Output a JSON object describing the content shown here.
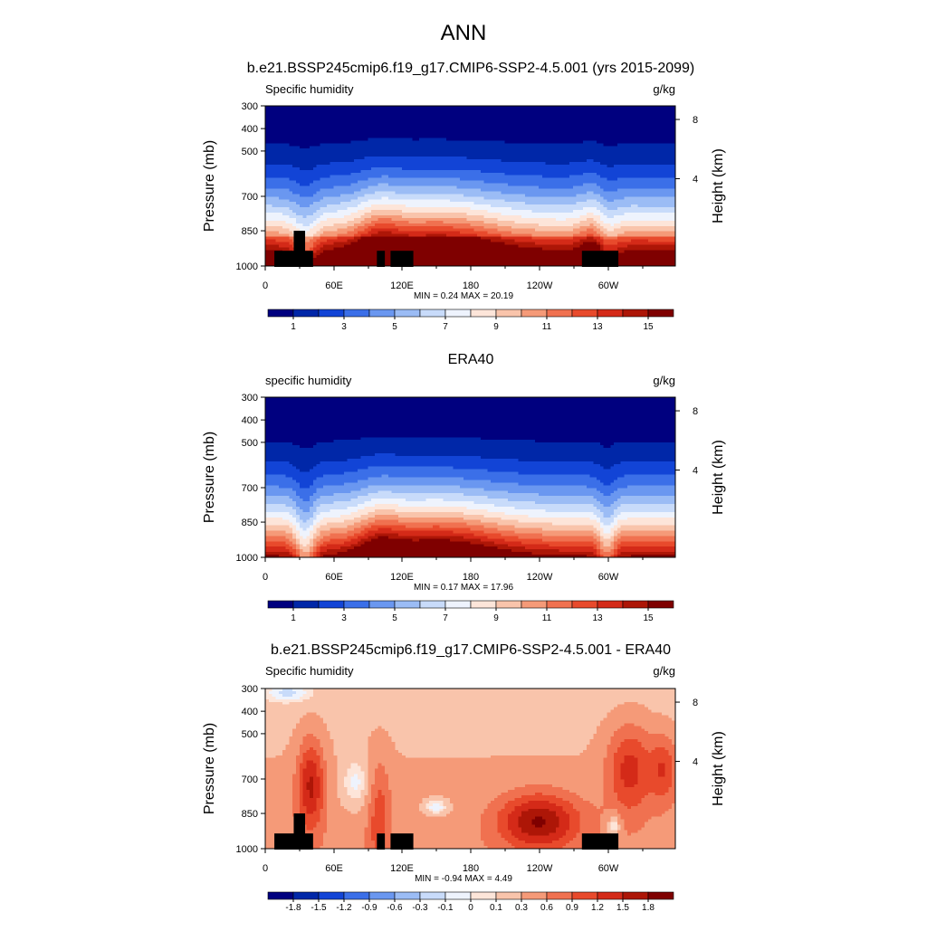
{
  "page": {
    "title": "ANN"
  },
  "chart_data": [
    {
      "type": "heatmap",
      "id": "model",
      "title": "b.e21.BSSP245cmip6.f19_g17.CMIP6-SSP2-4.5.001 (yrs 2015-2099)",
      "variable": "Specific humidity",
      "units": "g/kg",
      "ylabel": "Pressure (mb)",
      "y2label": "Height (km)",
      "xticks": [
        "0",
        "60E",
        "120E",
        "180",
        "120W",
        "60W"
      ],
      "yticks": [
        "300",
        "400",
        "500",
        "700",
        "850",
        "1000"
      ],
      "y2ticks": [
        "8",
        "4"
      ],
      "stats": "MIN =   0.24  MAX =  20.19",
      "min": 0.24,
      "max": 20.19,
      "colorbar_labels": [
        "1",
        "3",
        "5",
        "7",
        "9",
        "11",
        "13",
        "15"
      ],
      "colors": [
        "#00007f",
        "#0027a8",
        "#1244d6",
        "#3b6fe8",
        "#6a97f0",
        "#9bbcf5",
        "#c8dbfa",
        "#eef3fd",
        "#fde5d9",
        "#f9c4ab",
        "#f59a78",
        "#f07150",
        "#e84a2c",
        "#d42a18",
        "#ad1607",
        "#7f0000"
      ]
    },
    {
      "type": "heatmap",
      "id": "obs",
      "title": "ERA40",
      "variable": "specific humidity",
      "units": "g/kg",
      "ylabel": "Pressure (mb)",
      "y2label": "Height (km)",
      "xticks": [
        "0",
        "60E",
        "120E",
        "180",
        "120W",
        "60W"
      ],
      "yticks": [
        "300",
        "400",
        "500",
        "700",
        "850",
        "1000"
      ],
      "y2ticks": [
        "8",
        "4"
      ],
      "stats": "MIN =   0.17  MAX =  17.96",
      "min": 0.17,
      "max": 17.96,
      "colorbar_labels": [
        "1",
        "3",
        "5",
        "7",
        "9",
        "11",
        "13",
        "15"
      ],
      "colors": [
        "#00007f",
        "#0027a8",
        "#1244d6",
        "#3b6fe8",
        "#6a97f0",
        "#9bbcf5",
        "#c8dbfa",
        "#eef3fd",
        "#fde5d9",
        "#f9c4ab",
        "#f59a78",
        "#f07150",
        "#e84a2c",
        "#d42a18",
        "#ad1607",
        "#7f0000"
      ]
    },
    {
      "type": "heatmap",
      "id": "diff",
      "title": "b.e21.BSSP245cmip6.f19_g17.CMIP6-SSP2-4.5.001 - ERA40",
      "variable": "Specific humidity",
      "units": "g/kg",
      "ylabel": "Pressure (mb)",
      "y2label": "Height (km)",
      "xticks": [
        "0",
        "60E",
        "120E",
        "180",
        "120W",
        "60W"
      ],
      "yticks": [
        "300",
        "400",
        "500",
        "700",
        "850",
        "1000"
      ],
      "y2ticks": [
        "8",
        "4"
      ],
      "stats": "MIN =  -0.94  MAX =   4.49",
      "min": -0.94,
      "max": 4.49,
      "colorbar_labels": [
        "-1.8",
        "-1.5",
        "-1.2",
        "-0.9",
        "-0.6",
        "-0.3",
        "-0.1",
        "0",
        "0.1",
        "0.3",
        "0.6",
        "0.9",
        "1.2",
        "1.5",
        "1.8"
      ],
      "colors": [
        "#00007f",
        "#0027a8",
        "#1244d6",
        "#3b6fe8",
        "#6a97f0",
        "#9bbcf5",
        "#c8dbfa",
        "#eef3fd",
        "#fde5d9",
        "#f9c4ab",
        "#f59a78",
        "#f07150",
        "#e84a2c",
        "#d42a18",
        "#ad1607",
        "#7f0000"
      ]
    }
  ]
}
